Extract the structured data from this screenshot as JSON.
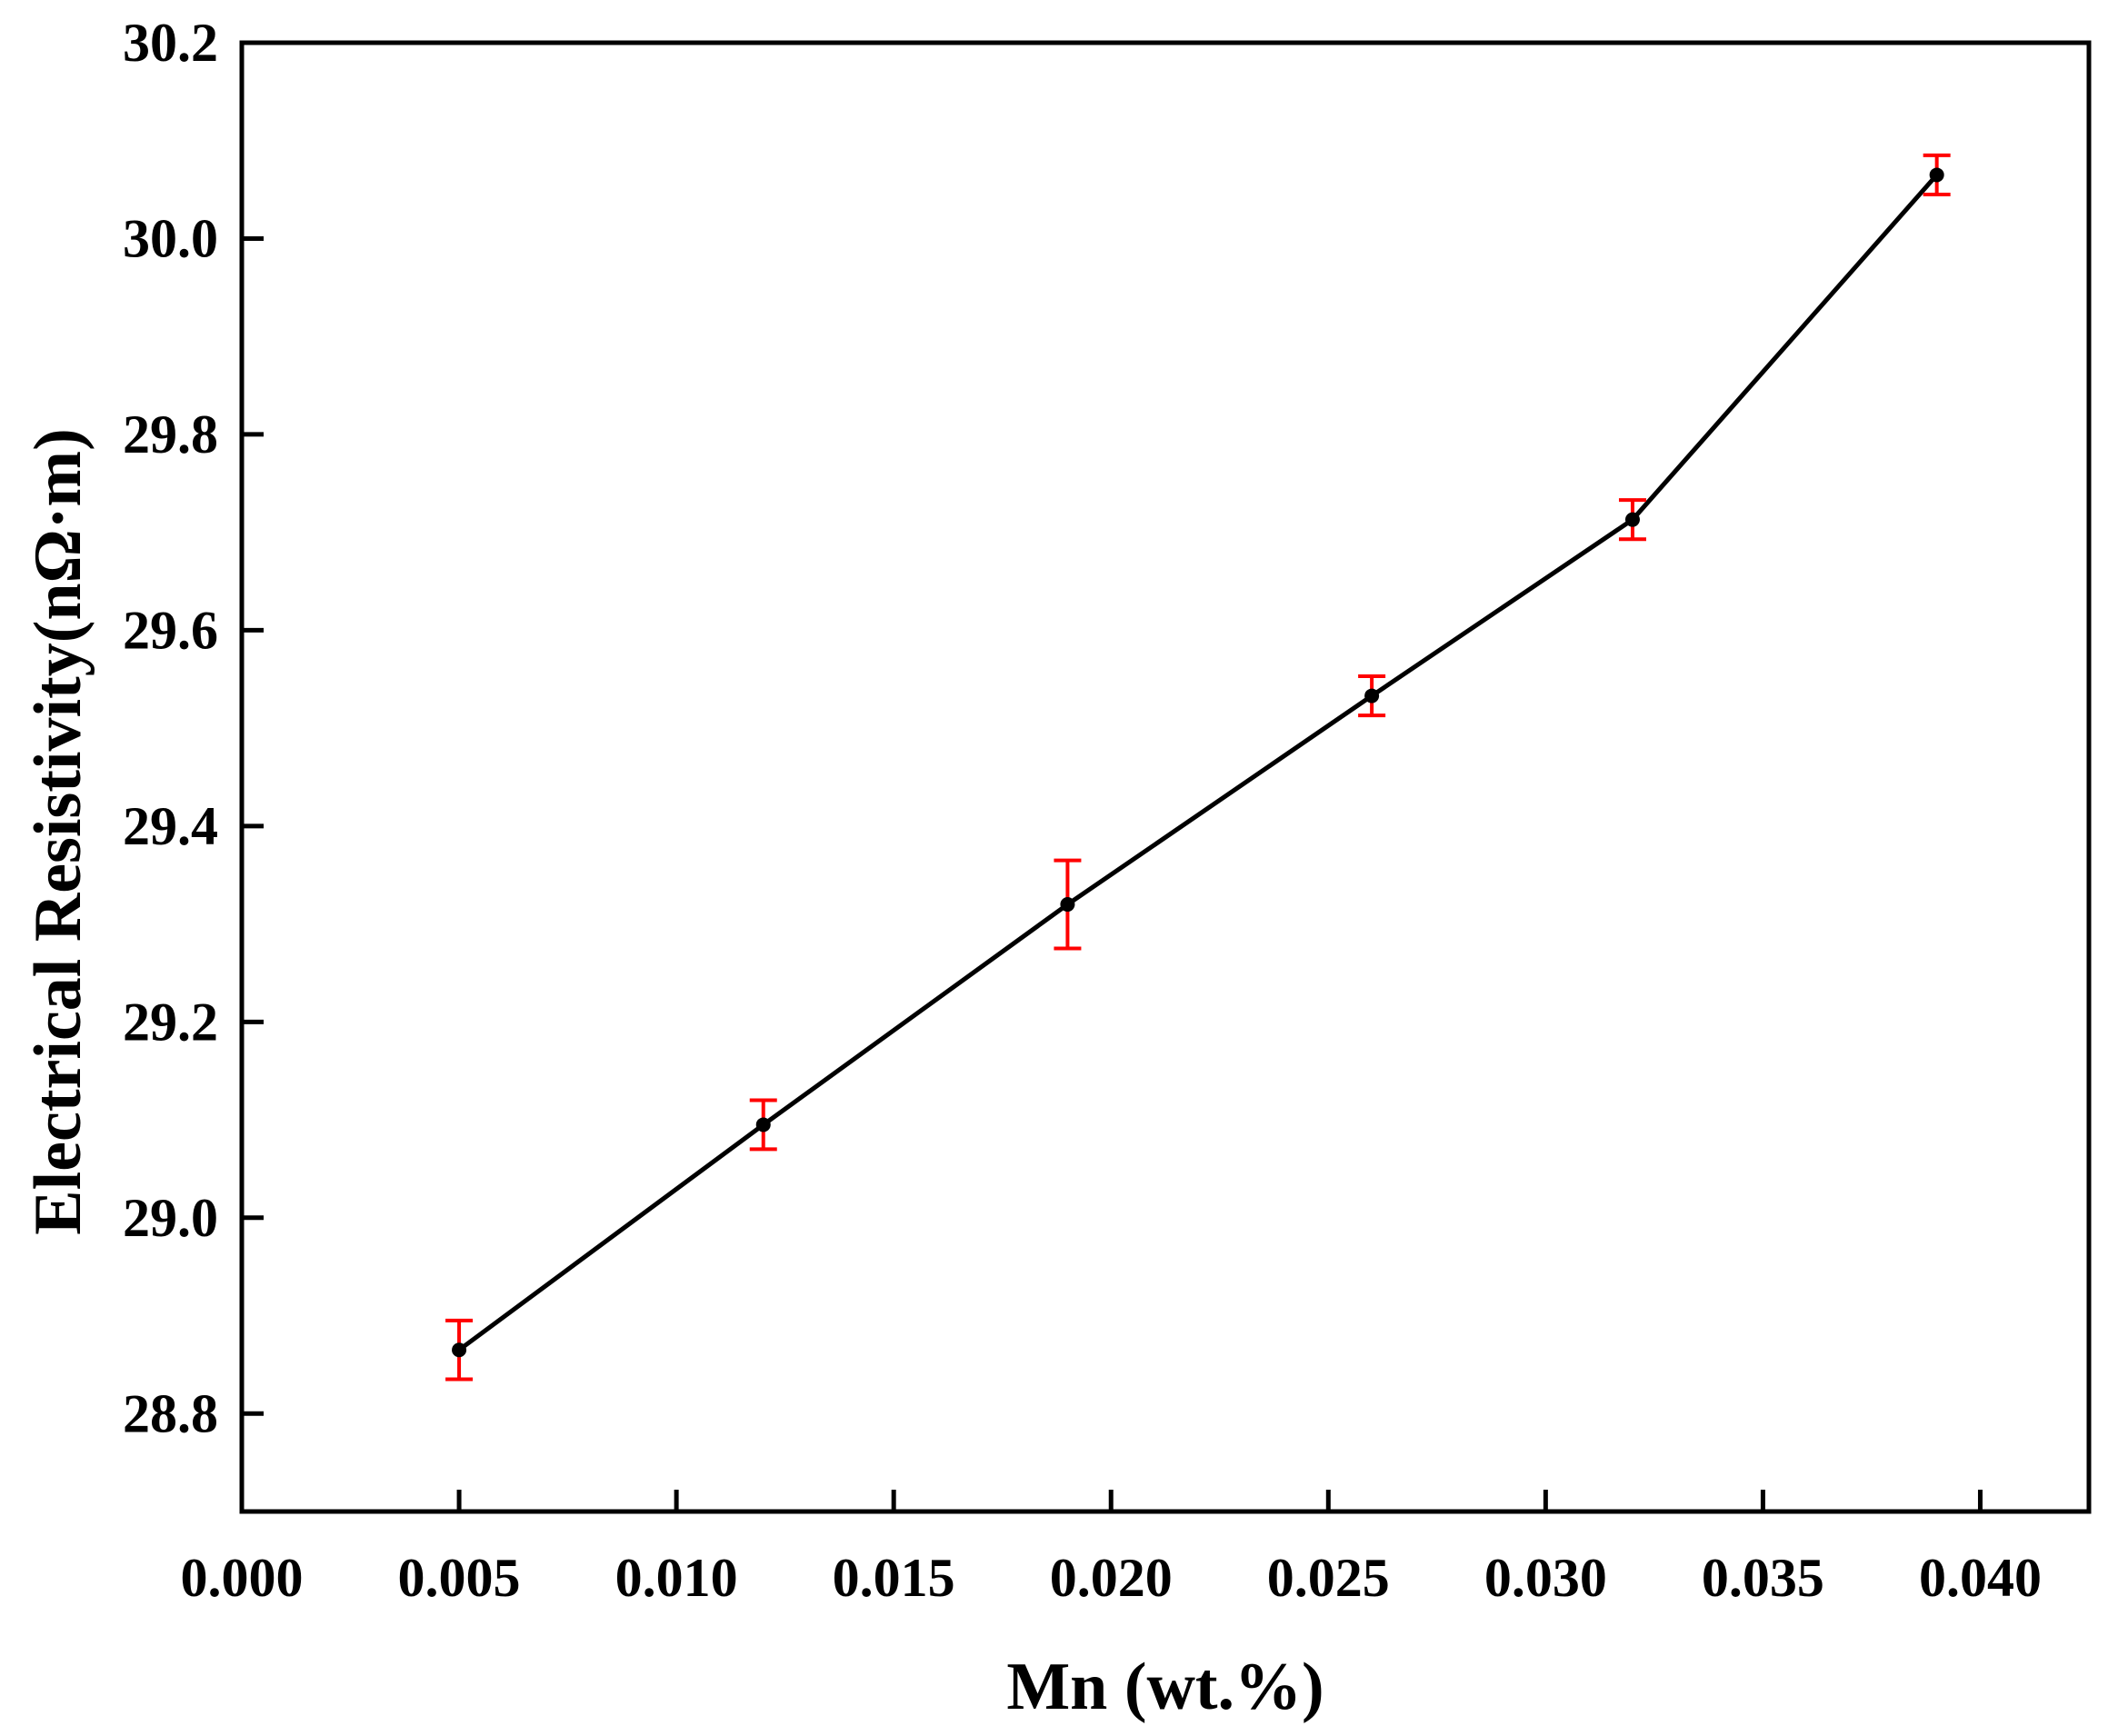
{
  "chart_data": {
    "type": "line",
    "title": "",
    "xlabel": "Mn (wt.%)",
    "ylabel": "Electrical Resistivity(nΩ·m)",
    "xlim": [
      0.0,
      0.0425
    ],
    "ylim": [
      28.7,
      30.2
    ],
    "x_ticks": [
      "0.000",
      "0.005",
      "0.010",
      "0.015",
      "0.020",
      "0.025",
      "0.030",
      "0.035",
      "0.040"
    ],
    "y_ticks": [
      "28.8",
      "29.0",
      "29.2",
      "29.4",
      "29.6",
      "29.8",
      "30.0",
      "30.2"
    ],
    "grid": false,
    "legend": "none",
    "colors": {
      "line": "#000000",
      "marker": "#000000",
      "error_bar": "#ff0000"
    },
    "series": [
      {
        "x": [
          0.005,
          0.012,
          0.019,
          0.026,
          0.032,
          0.039
        ],
        "y": [
          28.865,
          29.095,
          29.32,
          29.533,
          29.713,
          30.065
        ],
        "error": [
          0.03,
          0.025,
          0.045,
          0.02,
          0.02,
          0.02
        ]
      }
    ]
  }
}
